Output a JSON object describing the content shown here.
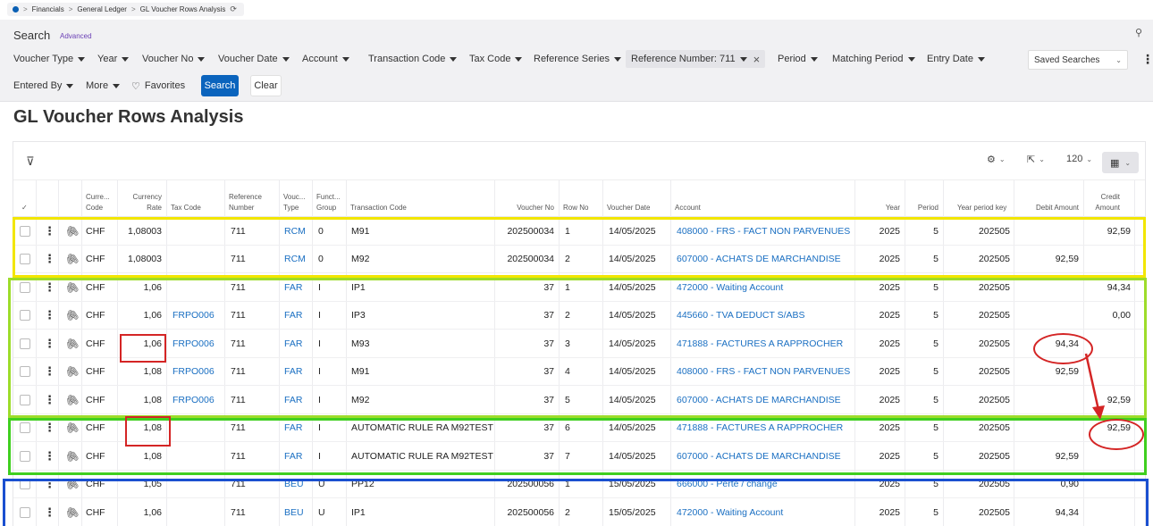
{
  "breadcrumb": {
    "items": [
      "Financials",
      "General Ledger",
      "GL Voucher Rows Analysis"
    ],
    "separator": ">"
  },
  "search": {
    "title": "Search",
    "advanced": "Advanced",
    "filters_row1": [
      "Voucher Type",
      "Year",
      "Voucher No",
      "Voucher Date",
      "Account",
      "Transaction Code",
      "Tax Code",
      "Reference Series"
    ],
    "active_filter": "Reference Number: 711",
    "filters_row1b": [
      "Period",
      "Matching Period",
      "Entry Date"
    ],
    "saved_searches": "Saved Searches",
    "entered_by": "Entered By",
    "more": "More",
    "favorites": "Favorites",
    "search_button": "Search",
    "clear_button": "Clear"
  },
  "page_title": "GL Voucher Rows Analysis",
  "toolbar": {
    "page_size": "120"
  },
  "columns": {
    "currency_code": [
      "Curre...",
      "Code"
    ],
    "currency_rate": [
      "Currency",
      "Rate"
    ],
    "tax_code": "Tax Code",
    "reference_number": [
      "Reference",
      "Number"
    ],
    "voucher_type": [
      "Vouc...",
      "Type"
    ],
    "function_group": [
      "Funct...",
      "Group"
    ],
    "transaction_code": "Transaction Code",
    "voucher_no": "Voucher No",
    "row_no": "Row No",
    "voucher_date": "Voucher Date",
    "account": "Account",
    "year": "Year",
    "period": "Period",
    "year_period_key": "Year period key",
    "debit_amount": "Debit Amount",
    "credit_amount": [
      "Credit",
      "Amount"
    ]
  },
  "rows": [
    {
      "currency": "CHF",
      "rate": "1,08003",
      "tax": "",
      "ref": "711",
      "vtype": "RCM",
      "fgroup": "0",
      "tcode": "M91",
      "vno": "202500034",
      "rowno": "1",
      "date": "14/05/2025",
      "account": "408000 - FRS - FACT NON PARVENUES",
      "year": "2025",
      "period": "5",
      "ypk": "202505",
      "debit": "",
      "credit": "92,59"
    },
    {
      "currency": "CHF",
      "rate": "1,08003",
      "tax": "",
      "ref": "711",
      "vtype": "RCM",
      "fgroup": "0",
      "tcode": "M92",
      "vno": "202500034",
      "rowno": "2",
      "date": "14/05/2025",
      "account": "607000 - ACHATS DE MARCHANDISE",
      "year": "2025",
      "period": "5",
      "ypk": "202505",
      "debit": "92,59",
      "credit": ""
    },
    {
      "currency": "CHF",
      "rate": "1,06",
      "tax": "",
      "ref": "711",
      "vtype": "FAR",
      "fgroup": "I",
      "tcode": "IP1",
      "vno": "37",
      "rowno": "1",
      "date": "14/05/2025",
      "account": "472000 - Waiting Account",
      "year": "2025",
      "period": "5",
      "ypk": "202505",
      "debit": "",
      "credit": "94,34"
    },
    {
      "currency": "CHF",
      "rate": "1,06",
      "tax": "FRPO006",
      "ref": "711",
      "vtype": "FAR",
      "fgroup": "I",
      "tcode": "IP3",
      "vno": "37",
      "rowno": "2",
      "date": "14/05/2025",
      "account": "445660 - TVA DEDUCT S/ABS",
      "year": "2025",
      "period": "5",
      "ypk": "202505",
      "debit": "",
      "credit": "0,00"
    },
    {
      "currency": "CHF",
      "rate": "1,06",
      "tax": "FRPO006",
      "ref": "711",
      "vtype": "FAR",
      "fgroup": "I",
      "tcode": "M93",
      "vno": "37",
      "rowno": "3",
      "date": "14/05/2025",
      "account": "471888 - FACTURES A RAPPROCHER",
      "year": "2025",
      "period": "5",
      "ypk": "202505",
      "debit": "94,34",
      "credit": ""
    },
    {
      "currency": "CHF",
      "rate": "1,08",
      "tax": "FRPO006",
      "ref": "711",
      "vtype": "FAR",
      "fgroup": "I",
      "tcode": "M91",
      "vno": "37",
      "rowno": "4",
      "date": "14/05/2025",
      "account": "408000 - FRS - FACT NON PARVENUES",
      "year": "2025",
      "period": "5",
      "ypk": "202505",
      "debit": "92,59",
      "credit": ""
    },
    {
      "currency": "CHF",
      "rate": "1,08",
      "tax": "FRPO006",
      "ref": "711",
      "vtype": "FAR",
      "fgroup": "I",
      "tcode": "M92",
      "vno": "37",
      "rowno": "5",
      "date": "14/05/2025",
      "account": "607000 - ACHATS DE MARCHANDISE",
      "year": "2025",
      "period": "5",
      "ypk": "202505",
      "debit": "",
      "credit": "92,59"
    },
    {
      "currency": "CHF",
      "rate": "1,08",
      "tax": "",
      "ref": "711",
      "vtype": "FAR",
      "fgroup": "I",
      "tcode": "AUTOMATIC RULE RA M92TEST",
      "vno": "37",
      "rowno": "6",
      "date": "14/05/2025",
      "account": "471888 - FACTURES A RAPPROCHER",
      "year": "2025",
      "period": "5",
      "ypk": "202505",
      "debit": "",
      "credit": "92,59"
    },
    {
      "currency": "CHF",
      "rate": "1,08",
      "tax": "",
      "ref": "711",
      "vtype": "FAR",
      "fgroup": "I",
      "tcode": "AUTOMATIC RULE RA M92TEST",
      "vno": "37",
      "rowno": "7",
      "date": "14/05/2025",
      "account": "607000 - ACHATS DE MARCHANDISE",
      "year": "2025",
      "period": "5",
      "ypk": "202505",
      "debit": "92,59",
      "credit": ""
    },
    {
      "currency": "CHF",
      "rate": "1,05",
      "tax": "",
      "ref": "711",
      "vtype": "BEU",
      "fgroup": "U",
      "tcode": "PP12",
      "vno": "202500056",
      "rowno": "1",
      "date": "15/05/2025",
      "account": "666000 - Perte / change",
      "year": "2025",
      "period": "5",
      "ypk": "202505",
      "debit": "0,90",
      "credit": ""
    },
    {
      "currency": "CHF",
      "rate": "1,06",
      "tax": "",
      "ref": "711",
      "vtype": "BEU",
      "fgroup": "U",
      "tcode": "IP1",
      "vno": "202500056",
      "rowno": "2",
      "date": "15/05/2025",
      "account": "472000 - Waiting Account",
      "year": "2025",
      "period": "5",
      "ypk": "202505",
      "debit": "94,34",
      "credit": ""
    }
  ],
  "colors": {
    "primary": "#0b64bd",
    "link": "#1a6fc2",
    "highlight_yellow": "#f2e600",
    "highlight_lime": "#9ddc2a",
    "highlight_green": "#3fcf1f",
    "highlight_blue": "#1a4fd0",
    "annotation_red": "#d42525"
  },
  "icons": [
    "filter-icon",
    "gear-icon",
    "export-icon",
    "table-layout-icon",
    "heart-icon",
    "pin-icon",
    "refresh-icon",
    "paperclip-icon",
    "kebab-icon"
  ]
}
